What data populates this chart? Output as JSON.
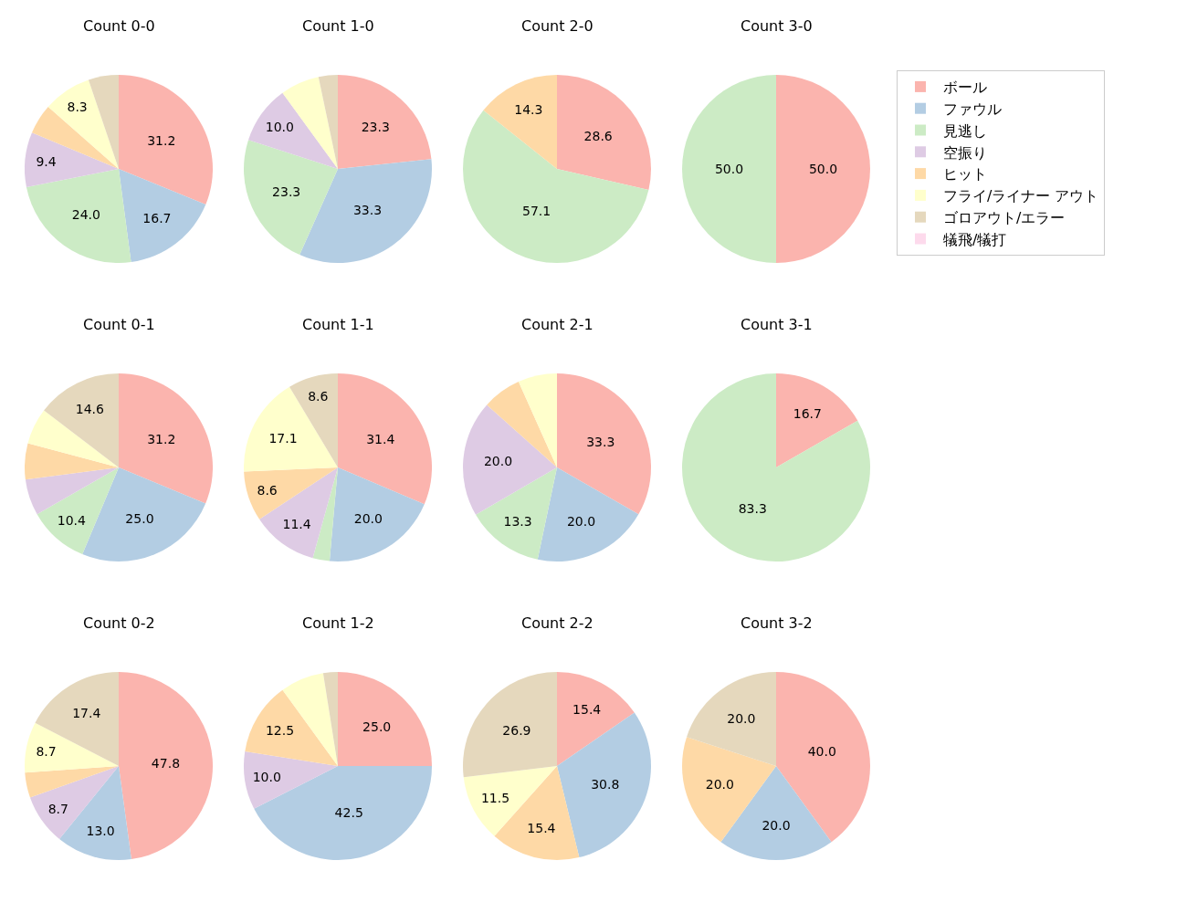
{
  "chart_data": [
    {
      "type": "pie",
      "title": "Count 0-0",
      "categories": [
        "ボール",
        "ファウル",
        "見逃し",
        "空振り",
        "ヒット",
        "フライ/ライナー アウト",
        "ゴロアウト/エラー",
        "犠飛/犠打"
      ],
      "values": [
        31.2,
        16.7,
        24.0,
        9.4,
        5.2,
        8.3,
        5.2,
        0
      ],
      "value_labels": [
        "31.2",
        "16.7",
        "24.0",
        "9.4",
        null,
        "8.3",
        null,
        null
      ],
      "colors": [
        "#fbb4ae",
        "#b3cde3",
        "#ccebc5",
        "#decbe4",
        "#fed9a6",
        "#ffffcc",
        "#e5d8bd",
        "#fddaec"
      ],
      "legend": "right"
    },
    {
      "type": "pie",
      "title": "Count 1-0",
      "categories": [
        null,
        null,
        null,
        null,
        null,
        null,
        null,
        null
      ],
      "values": [
        23.3,
        33.3,
        23.3,
        10.0,
        0,
        6.7,
        3.3,
        0
      ],
      "value_labels": [
        "23.3",
        "33.3",
        "23.3",
        "10.0",
        null,
        null,
        null,
        null
      ],
      "colors": [
        "#fbb4ae",
        "#b3cde3",
        "#ccebc5",
        "#decbe4",
        "#fed9a6",
        "#ffffcc",
        "#e5d8bd",
        "#fddaec"
      ]
    },
    {
      "type": "pie",
      "title": "Count 2-0",
      "categories": [
        null,
        null,
        null,
        null,
        null,
        null,
        null,
        null
      ],
      "values": [
        28.6,
        0,
        57.1,
        0,
        14.3,
        0,
        0,
        0
      ],
      "value_labels": [
        "28.6",
        null,
        "57.1",
        null,
        "14.3",
        null,
        null,
        null
      ],
      "colors": [
        "#fbb4ae",
        "#b3cde3",
        "#ccebc5",
        "#decbe4",
        "#fed9a6",
        "#ffffcc",
        "#e5d8bd",
        "#fddaec"
      ]
    },
    {
      "type": "pie",
      "title": "Count 3-0",
      "categories": [
        null,
        null,
        null,
        null,
        null,
        null,
        null,
        null
      ],
      "values": [
        50.0,
        0,
        50.0,
        0,
        0,
        0,
        0,
        0
      ],
      "value_labels": [
        "50.0",
        null,
        "50.0",
        null,
        null,
        null,
        null,
        null
      ],
      "colors": [
        "#fbb4ae",
        "#b3cde3",
        "#ccebc5",
        "#decbe4",
        "#fed9a6",
        "#ffffcc",
        "#e5d8bd",
        "#fddaec"
      ]
    },
    {
      "type": "pie",
      "title": "Count 0-1",
      "categories": [
        null,
        null,
        null,
        null,
        null,
        null,
        null,
        null
      ],
      "values": [
        31.2,
        25.0,
        10.4,
        6.2,
        6.2,
        6.2,
        14.6,
        0
      ],
      "value_labels": [
        "31.2",
        "25.0",
        "10.4",
        null,
        null,
        null,
        "14.6",
        null
      ],
      "colors": [
        "#fbb4ae",
        "#b3cde3",
        "#ccebc5",
        "#decbe4",
        "#fed9a6",
        "#ffffcc",
        "#e5d8bd",
        "#fddaec"
      ]
    },
    {
      "type": "pie",
      "title": "Count 1-1",
      "categories": [
        null,
        null,
        null,
        null,
        null,
        null,
        null,
        null
      ],
      "values": [
        31.4,
        20.0,
        2.9,
        11.4,
        8.6,
        17.1,
        8.6,
        0
      ],
      "value_labels": [
        "31.4",
        "20.0",
        null,
        "11.4",
        "8.6",
        "17.1",
        "8.6",
        null
      ],
      "colors": [
        "#fbb4ae",
        "#b3cde3",
        "#ccebc5",
        "#decbe4",
        "#fed9a6",
        "#ffffcc",
        "#e5d8bd",
        "#fddaec"
      ]
    },
    {
      "type": "pie",
      "title": "Count 2-1",
      "categories": [
        null,
        null,
        null,
        null,
        null,
        null,
        null,
        null
      ],
      "values": [
        33.3,
        20.0,
        13.3,
        20.0,
        6.7,
        6.7,
        0,
        0
      ],
      "value_labels": [
        "33.3",
        "20.0",
        "13.3",
        "20.0",
        null,
        null,
        null,
        null
      ],
      "colors": [
        "#fbb4ae",
        "#b3cde3",
        "#ccebc5",
        "#decbe4",
        "#fed9a6",
        "#ffffcc",
        "#e5d8bd",
        "#fddaec"
      ]
    },
    {
      "type": "pie",
      "title": "Count 3-1",
      "categories": [
        null,
        null,
        null,
        null,
        null,
        null,
        null,
        null
      ],
      "values": [
        16.7,
        0,
        83.3,
        0,
        0,
        0,
        0,
        0
      ],
      "value_labels": [
        "16.7",
        null,
        "83.3",
        null,
        null,
        null,
        null,
        null
      ],
      "colors": [
        "#fbb4ae",
        "#b3cde3",
        "#ccebc5",
        "#decbe4",
        "#fed9a6",
        "#ffffcc",
        "#e5d8bd",
        "#fddaec"
      ]
    },
    {
      "type": "pie",
      "title": "Count 0-2",
      "categories": [
        null,
        null,
        null,
        null,
        null,
        null,
        null,
        null
      ],
      "values": [
        47.8,
        13.0,
        0,
        8.7,
        4.3,
        8.7,
        17.4,
        0
      ],
      "value_labels": [
        "47.8",
        "13.0",
        null,
        "8.7",
        null,
        "8.7",
        "17.4",
        null
      ],
      "colors": [
        "#fbb4ae",
        "#b3cde3",
        "#ccebc5",
        "#decbe4",
        "#fed9a6",
        "#ffffcc",
        "#e5d8bd",
        "#fddaec"
      ]
    },
    {
      "type": "pie",
      "title": "Count 1-2",
      "categories": [
        null,
        null,
        null,
        null,
        null,
        null,
        null,
        null
      ],
      "values": [
        25.0,
        42.5,
        0,
        10.0,
        12.5,
        7.5,
        2.5,
        0
      ],
      "value_labels": [
        "25.0",
        "42.5",
        null,
        "10.0",
        "12.5",
        null,
        null,
        null
      ],
      "colors": [
        "#fbb4ae",
        "#b3cde3",
        "#ccebc5",
        "#decbe4",
        "#fed9a6",
        "#ffffcc",
        "#e5d8bd",
        "#fddaec"
      ]
    },
    {
      "type": "pie",
      "title": "Count 2-2",
      "categories": [
        null,
        null,
        null,
        null,
        null,
        null,
        null,
        null
      ],
      "values": [
        15.4,
        30.8,
        0,
        0,
        15.4,
        11.5,
        26.9,
        0
      ],
      "value_labels": [
        "15.4",
        "30.8",
        null,
        null,
        "15.4",
        "11.5",
        "26.9",
        null
      ],
      "colors": [
        "#fbb4ae",
        "#b3cde3",
        "#ccebc5",
        "#decbe4",
        "#fed9a6",
        "#ffffcc",
        "#e5d8bd",
        "#fddaec"
      ]
    },
    {
      "type": "pie",
      "title": "Count 3-2",
      "categories": [
        null,
        null,
        null,
        null,
        null,
        null,
        null,
        null
      ],
      "values": [
        40.0,
        20.0,
        0,
        0,
        20.0,
        0,
        20.0,
        0
      ],
      "value_labels": [
        "40.0",
        "20.0",
        null,
        null,
        "20.0",
        null,
        "20.0",
        null
      ],
      "colors": [
        "#fbb4ae",
        "#b3cde3",
        "#ccebc5",
        "#decbe4",
        "#fed9a6",
        "#ffffcc",
        "#e5d8bd",
        "#fddaec"
      ]
    }
  ]
}
